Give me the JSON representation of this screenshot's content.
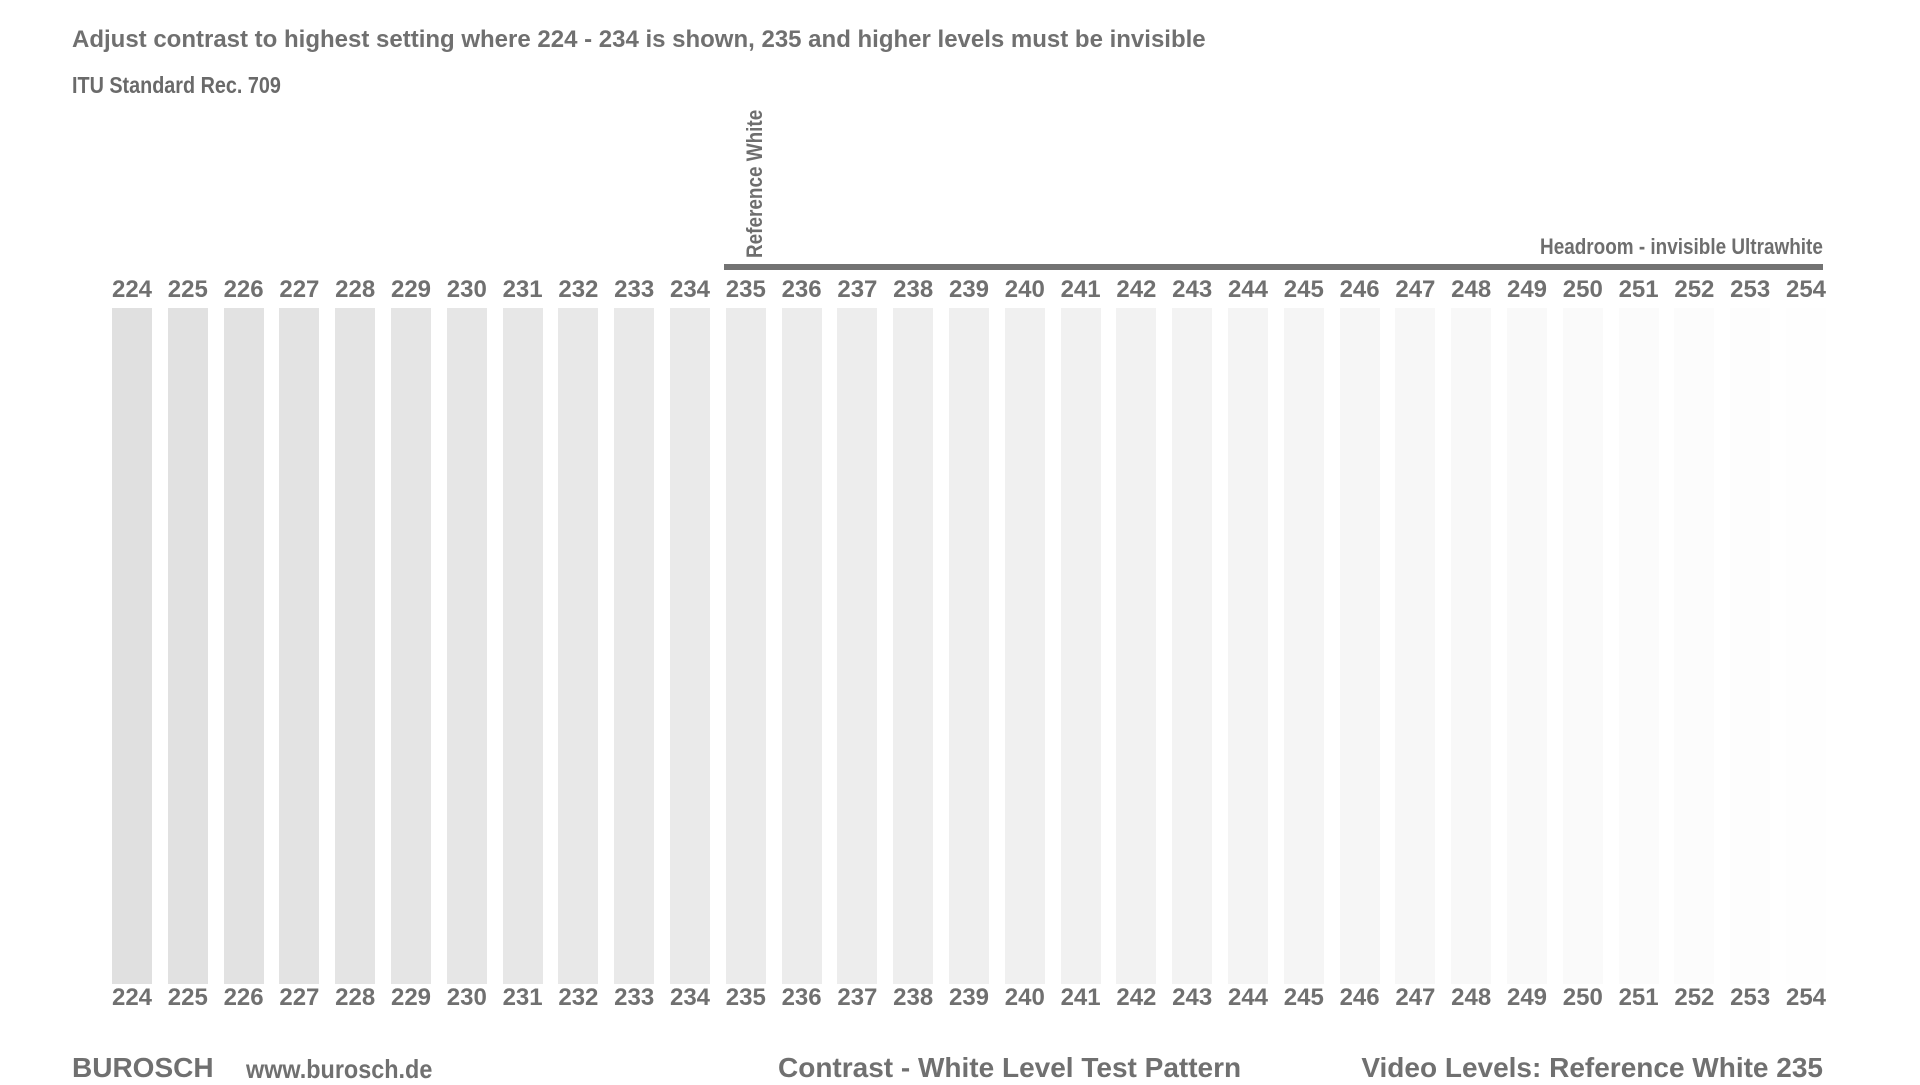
{
  "instruction": "Adjust contrast to highest setting where 224 - 234 is shown, 235 and higher levels must be invisible",
  "standard": "ITU Standard Rec. 709",
  "reference_white_label": "Reference White",
  "headroom_label": "Headroom - invisible Ultrawhite",
  "levels": [
    {
      "label": "224",
      "color": "#e0e0e0"
    },
    {
      "label": "225",
      "color": "#e1e1e1"
    },
    {
      "label": "226",
      "color": "#e2e2e2"
    },
    {
      "label": "227",
      "color": "#e3e3e3"
    },
    {
      "label": "228",
      "color": "#e4e4e4"
    },
    {
      "label": "229",
      "color": "#e5e5e5"
    },
    {
      "label": "230",
      "color": "#e6e6e6"
    },
    {
      "label": "231",
      "color": "#e7e7e7"
    },
    {
      "label": "232",
      "color": "#e8e8e8"
    },
    {
      "label": "233",
      "color": "#e9e9e9"
    },
    {
      "label": "234",
      "color": "#eaeaea"
    },
    {
      "label": "235",
      "color": "#ebebeb"
    },
    {
      "label": "236",
      "color": "#ececec"
    },
    {
      "label": "237",
      "color": "#ededed"
    },
    {
      "label": "238",
      "color": "#eeeeee"
    },
    {
      "label": "239",
      "color": "#efefef"
    },
    {
      "label": "240",
      "color": "#f0f0f0"
    },
    {
      "label": "241",
      "color": "#f1f1f1"
    },
    {
      "label": "242",
      "color": "#f2f2f2"
    },
    {
      "label": "243",
      "color": "#f3f3f3"
    },
    {
      "label": "244",
      "color": "#f4f4f4"
    },
    {
      "label": "245",
      "color": "#f5f5f5"
    },
    {
      "label": "246",
      "color": "#f6f6f6"
    },
    {
      "label": "247",
      "color": "#f7f7f7"
    },
    {
      "label": "248",
      "color": "#f8f8f8"
    },
    {
      "label": "249",
      "color": "#f9f9f9"
    },
    {
      "label": "250",
      "color": "#fafafa"
    },
    {
      "label": "251",
      "color": "#fbfbfb"
    },
    {
      "label": "252",
      "color": "#fcfcfc"
    },
    {
      "label": "253",
      "color": "#fdfdfd"
    },
    {
      "label": "254",
      "color": "#fefefe"
    }
  ],
  "footer": {
    "brand": "BUROSCH",
    "website": "www.burosch.de",
    "pattern_name": "Contrast - White Level Test Pattern",
    "video_levels": "Video Levels: Reference White 235"
  },
  "colors": {
    "text": "#707070",
    "headroom_line": "#737373",
    "background": "#ffffff"
  }
}
